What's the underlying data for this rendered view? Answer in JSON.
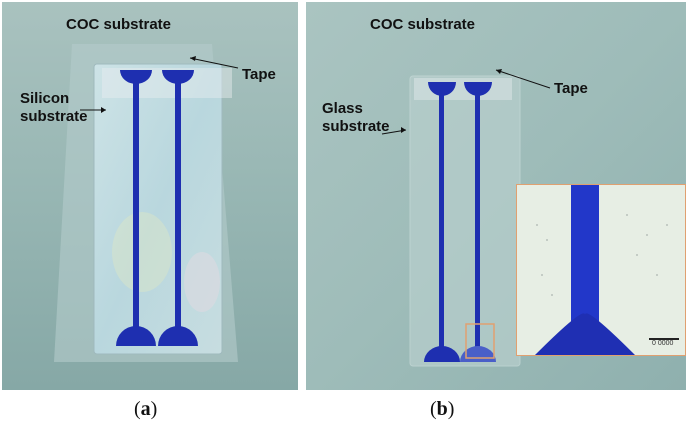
{
  "panel_a": {
    "title": "COC substrate",
    "tape_label": "Tape",
    "substrate_label_line1": "Silicon",
    "substrate_label_line2": "substrate",
    "caption_letter": "a"
  },
  "panel_b": {
    "title": "COC substrate",
    "tape_label": "Tape",
    "substrate_label_line1": "Glass",
    "substrate_label_line2": "substrate",
    "caption_letter": "b",
    "inset_scale_text": "0 0000"
  },
  "colors": {
    "channel_blue": "#1e2fb0",
    "background_teal": "#9bb9b6",
    "inset_frame": "#e0a070"
  }
}
